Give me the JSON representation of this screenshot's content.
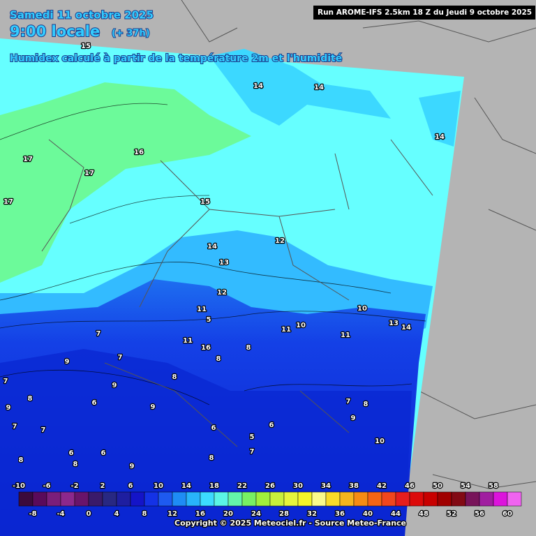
{
  "header": {
    "date": "Samedi 11 octobre 2025",
    "time": "9:00 locale",
    "lead": "(+ 37h)",
    "parameter": "Humidex calculé à partir de la température 2m et l'humidité",
    "run": "Run AROME-IFS 2.5km 18 Z du Jeudi 9 octobre 2025"
  },
  "map": {
    "contour_labels": [
      15,
      14,
      14,
      14,
      16,
      17,
      17,
      17,
      15,
      14,
      12,
      13,
      12,
      11,
      10,
      5,
      11,
      10,
      13,
      14,
      11,
      7,
      11,
      16,
      8,
      7,
      9,
      8,
      8,
      7,
      9,
      8,
      6,
      9,
      9,
      7,
      8,
      7,
      7,
      6,
      6,
      9,
      10,
      5,
      6,
      6,
      7,
      8,
      8,
      8,
      9
    ]
  },
  "legend": {
    "labels": [
      -10,
      -8,
      -6,
      -4,
      -2,
      0,
      2,
      4,
      6,
      8,
      10,
      12,
      14,
      16,
      18,
      20,
      22,
      24,
      26,
      28,
      30,
      32,
      34,
      36,
      38,
      40,
      42,
      44,
      46,
      48,
      50,
      52,
      54,
      56,
      58,
      60
    ],
    "colors": [
      "#3c0a3c",
      "#5a0a5a",
      "#7a1e7a",
      "#8c288c",
      "#6a146a",
      "#3a1a6a",
      "#282882",
      "#1e1ea0",
      "#1414c8",
      "#1432e6",
      "#1e5af0",
      "#1e8cf5",
      "#28b4fa",
      "#3cdcff",
      "#5af5e6",
      "#64f5aa",
      "#78f064",
      "#a0f03c",
      "#c8f03c",
      "#e6f53c",
      "#f5f528",
      "#fafa8c",
      "#fadc28",
      "#f5b41e",
      "#f58c14",
      "#f56414",
      "#f0461e",
      "#e61e1e",
      "#dc0a0a",
      "#c80000",
      "#a00000",
      "#820a14",
      "#78145a",
      "#a01ea0",
      "#dc14dc",
      "#f064f0"
    ]
  },
  "footer": {
    "copyright": "Copyright © 2025 Meteociel.fr - Source Meteo-France"
  }
}
